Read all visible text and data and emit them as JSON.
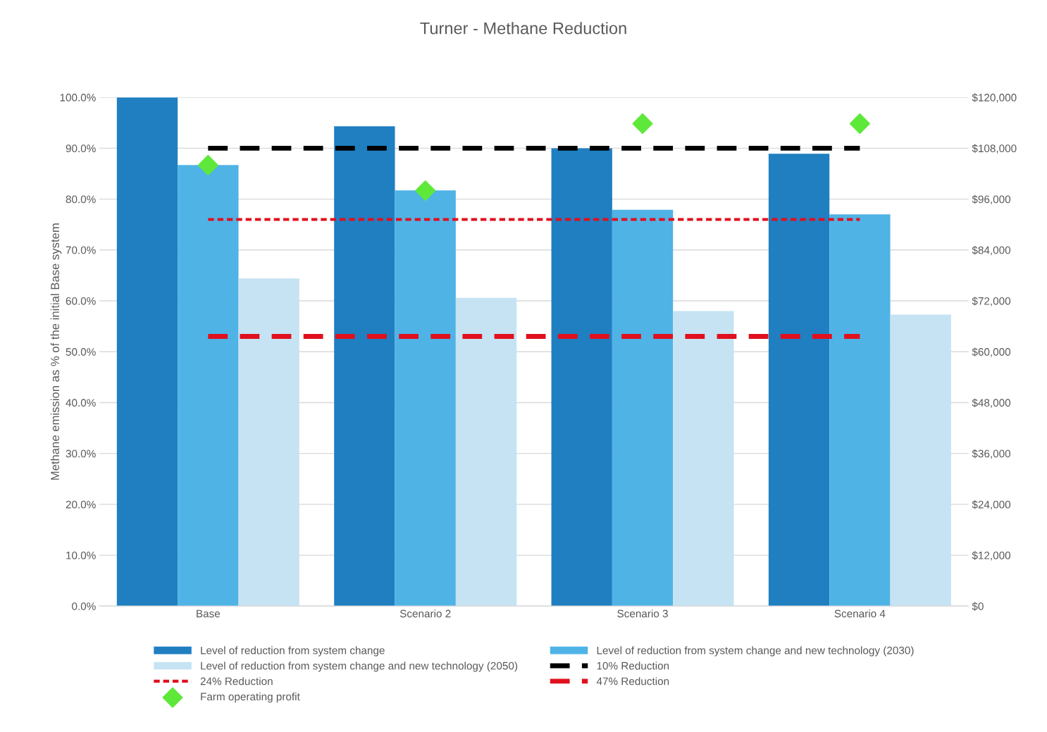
{
  "chart_data": {
    "type": "bar",
    "title": "Turner - Methane Reduction",
    "ylabel": "Methane emission as % of the initial Base system",
    "categories": [
      "Base",
      "Scenario 2",
      "Scenario 3",
      "Scenario 4"
    ],
    "series": [
      {
        "name": "Level of reduction from system change",
        "color": "#1f7fc1",
        "values": [
          100.0,
          94.3,
          90.0,
          88.9
        ]
      },
      {
        "name": "Level of reduction from system change and new technology (2030)",
        "color": "#4fb3e6",
        "values": [
          86.7,
          81.7,
          77.9,
          77.0
        ]
      },
      {
        "name": "Level of reduction from system change and new technology (2050)",
        "color": "#c5e3f3",
        "values": [
          64.4,
          60.6,
          58.0,
          57.3
        ]
      },
      {
        "name": "10% Reduction",
        "type": "line",
        "color": "#000000",
        "line_style": "dashed",
        "values": [
          90,
          90,
          90,
          90
        ]
      },
      {
        "name": "24% Reduction",
        "type": "line",
        "color": "#e0101e",
        "line_style": "dotted",
        "values": [
          76,
          76,
          76,
          76
        ]
      },
      {
        "name": "47% Reduction",
        "type": "line",
        "color": "#e0101e",
        "line_style": "dashed",
        "values": [
          53,
          53,
          53,
          53
        ]
      },
      {
        "name": "Farm operating profit",
        "type": "scatter",
        "axis": "y2",
        "marker": "diamond",
        "color": "#5ee83a",
        "values": [
          104000,
          98000,
          113800,
          113800
        ]
      }
    ],
    "ylim": [
      0,
      100
    ],
    "yticks": [
      {
        "value": 0,
        "label": "0.0%"
      },
      {
        "value": 10,
        "label": "10.0%"
      },
      {
        "value": 20,
        "label": "20.0%"
      },
      {
        "value": 30,
        "label": "30.0%"
      },
      {
        "value": 40,
        "label": "40.0%"
      },
      {
        "value": 50,
        "label": "50.0%"
      },
      {
        "value": 60,
        "label": "60.0%"
      },
      {
        "value": 70,
        "label": "70.0%"
      },
      {
        "value": 80,
        "label": "80.0%"
      },
      {
        "value": 90,
        "label": "90.0%"
      },
      {
        "value": 100,
        "label": "100.0%"
      }
    ],
    "y2lim": [
      0,
      120000
    ],
    "y2ticks": [
      {
        "value": 0,
        "label": "$0"
      },
      {
        "value": 12000,
        "label": "$12,000"
      },
      {
        "value": 24000,
        "label": "$24,000"
      },
      {
        "value": 36000,
        "label": "$36,000"
      },
      {
        "value": 48000,
        "label": "$48,000"
      },
      {
        "value": 60000,
        "label": "$60,000"
      },
      {
        "value": 72000,
        "label": "$72,000"
      },
      {
        "value": 84000,
        "label": "$84,000"
      },
      {
        "value": 96000,
        "label": "$96,000"
      },
      {
        "value": 108000,
        "label": "$108,000"
      },
      {
        "value": 120000,
        "label": "$120,000"
      }
    ],
    "grid": "y",
    "legend": "bottom"
  }
}
